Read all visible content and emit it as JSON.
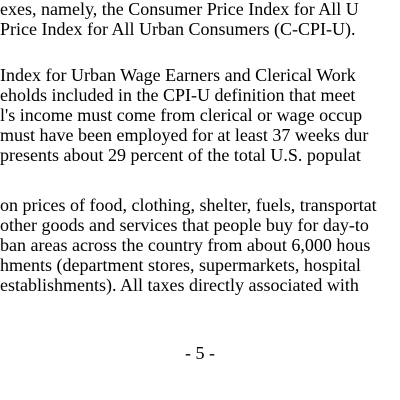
{
  "document": {
    "paragraph_1": [
      "exes, namely, the Consumer Price Index for All U",
      "Price Index for All Urban Consumers (C-CPI-U)."
    ],
    "paragraph_2": [
      "Index for Urban Wage Earners and Clerical Work",
      "eholds included in the CPI-U definition that meet",
      "l's income must come from clerical or wage occup",
      "must have been employed for at least 37 weeks dur",
      "presents about 29 percent of the total U.S. populat"
    ],
    "paragraph_3": [
      "on prices of food, clothing, shelter, fuels, transportat",
      "other goods and services that people buy for day-to",
      "ban areas across the country from about 6,000 hous",
      "hments (department stores, supermarkets, hospital",
      "establishments). All taxes directly associated with"
    ],
    "page_number": "- 5 -"
  }
}
